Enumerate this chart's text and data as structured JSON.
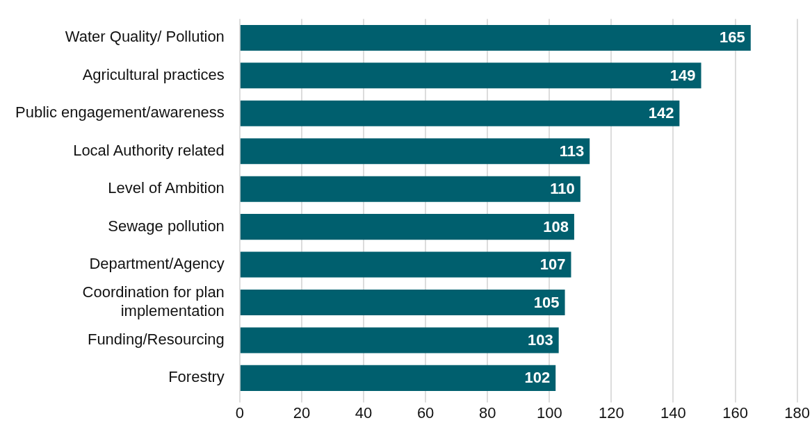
{
  "chart_data": {
    "type": "bar",
    "orientation": "horizontal",
    "categories": [
      "Water Quality/ Pollution",
      "Agricultural practices",
      "Public engagement/awareness",
      "Local Authority related",
      "Level of Ambition",
      "Sewage pollution",
      "Department/Agency",
      "Coordination for plan implementation",
      "Funding/Resourcing",
      "Forestry"
    ],
    "values": [
      165,
      149,
      142,
      113,
      110,
      108,
      107,
      105,
      103,
      102
    ],
    "color": "#005f6e",
    "xlim": [
      0,
      180
    ],
    "xticks": [
      0,
      20,
      40,
      60,
      80,
      100,
      120,
      140,
      160,
      180
    ],
    "grid": "x",
    "data_labels": true
  }
}
